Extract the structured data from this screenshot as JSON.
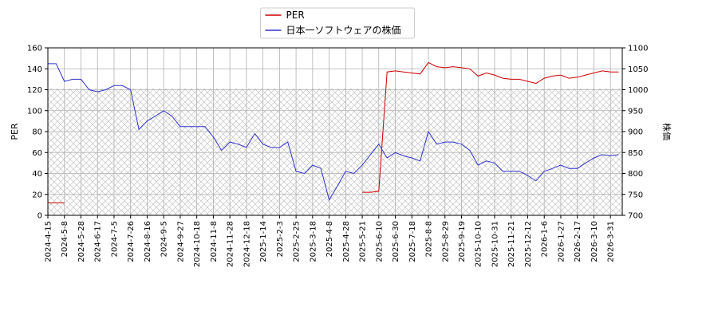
{
  "chart_data": {
    "type": "line",
    "x": [
      "2024-4-15",
      null,
      "2024-5-8",
      null,
      "2024-5-28",
      null,
      "2024-6-17",
      null,
      "2024-7-5",
      null,
      "2024-7-26",
      null,
      "2024-8-16",
      null,
      "2024-9-5",
      null,
      "2024-9-27",
      null,
      "2024-10-18",
      null,
      "2024-11-8",
      null,
      "2024-11-28",
      null,
      "2024-12-18",
      null,
      "2025-1-14",
      null,
      "2025-2-3",
      null,
      "2025-2-25",
      null,
      "2025-3-18",
      null,
      "2025-4-8",
      null,
      "2025-4-28",
      null,
      "2025-5-21",
      null,
      "2025-6-10",
      null,
      "2025-6-30",
      null,
      "2025-7-18",
      null,
      "2025-8-8",
      null,
      "2025-8-29",
      null,
      "2025-9-19",
      null,
      "2025-10-10",
      null,
      "2025-10-31",
      null,
      "2025-11-21",
      null,
      "2025-12-12",
      null,
      "2026-1-6",
      null,
      "2026-1-27",
      null,
      "2026-2-17",
      null,
      "2026-3-10",
      null,
      "2026-3-31",
      null
    ],
    "ylabel": "PER",
    "y2label": "株価",
    "ylim": [
      0,
      160
    ],
    "yticks": [
      0,
      20,
      40,
      60,
      80,
      100,
      120,
      140,
      160
    ],
    "y2lim": [
      700,
      1100
    ],
    "y2ticks": [
      700,
      750,
      800,
      850,
      900,
      950,
      1000,
      1050,
      1100
    ],
    "grid": true,
    "legend": "upper center",
    "series": [
      {
        "name": "PER",
        "color": "#cc0000",
        "values": [
          12,
          12,
          12,
          null,
          null,
          null,
          null,
          null,
          null,
          null,
          null,
          null,
          null,
          null,
          null,
          null,
          null,
          null,
          null,
          null,
          null,
          null,
          null,
          null,
          null,
          null,
          null,
          null,
          null,
          null,
          null,
          null,
          null,
          null,
          null,
          null,
          null,
          null,
          22,
          22,
          23,
          137,
          138,
          137,
          136,
          135,
          146,
          142,
          141,
          142,
          141,
          140,
          133,
          136,
          134,
          131,
          130,
          130,
          128,
          126,
          131,
          133,
          134,
          131,
          132,
          134,
          136,
          138,
          137,
          137
        ]
      },
      {
        "name": "日本一ソフトウェアの株価",
        "color": "#3333cc",
        "axis": "y2",
        "values": [
          1062,
          1062,
          1020,
          1025,
          1025,
          1000,
          995,
          1000,
          1010,
          1010,
          1000,
          905,
          925,
          937,
          950,
          937,
          912,
          912,
          912,
          912,
          887,
          855,
          875,
          870,
          862,
          895,
          870,
          862,
          862,
          875,
          805,
          800,
          820,
          812,
          737,
          770,
          805,
          800,
          820,
          845,
          870,
          837,
          850,
          842,
          837,
          830,
          900,
          870,
          875,
          875,
          870,
          855,
          820,
          830,
          825,
          805,
          805,
          805,
          795,
          782,
          805,
          812,
          820,
          812,
          812,
          825,
          837,
          845,
          842,
          845
        ]
      }
    ]
  }
}
